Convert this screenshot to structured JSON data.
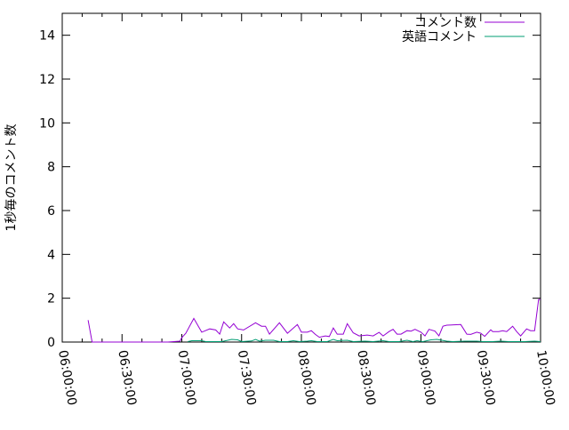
{
  "chart_data": {
    "type": "line",
    "title": "",
    "xlabel": "",
    "ylabel": "1秒毎のコメント数",
    "xlim": [
      "06:00:00",
      "10:00:00"
    ],
    "ylim": [
      0,
      15
    ],
    "xticks": [
      "06:00:00",
      "06:30:00",
      "07:00:00",
      "07:30:00",
      "08:00:00",
      "08:30:00",
      "09:00:00",
      "09:30:00",
      "10:00:00"
    ],
    "yticks": [
      "0",
      "2",
      "4",
      "6",
      "8",
      "10",
      "12",
      "14"
    ],
    "grid": false,
    "legend": "top-right",
    "series": [
      {
        "name": "コメント数",
        "color": "#9400d3",
        "points": [
          [
            "06:13",
            1.0
          ],
          [
            "06:15",
            0
          ],
          [
            "06:53",
            0
          ],
          [
            "06:59",
            0.04
          ],
          [
            "07:00",
            0.2
          ],
          [
            "07:02",
            0.4
          ],
          [
            "07:06",
            1.08
          ],
          [
            "07:10",
            0.45
          ],
          [
            "07:14",
            0.6
          ],
          [
            "07:17",
            0.55
          ],
          [
            "07:19",
            0.36
          ],
          [
            "07:21",
            0.92
          ],
          [
            "07:24",
            0.64
          ],
          [
            "07:26",
            0.84
          ],
          [
            "07:28",
            0.6
          ],
          [
            "07:31",
            0.55
          ],
          [
            "07:37",
            0.88
          ],
          [
            "07:40",
            0.72
          ],
          [
            "07:42",
            0.72
          ],
          [
            "07:44",
            0.36
          ],
          [
            "07:49",
            0.88
          ],
          [
            "07:53",
            0.4
          ],
          [
            "07:58",
            0.8
          ],
          [
            "08:00",
            0.45
          ],
          [
            "08:03",
            0.45
          ],
          [
            "08:05",
            0.52
          ],
          [
            "08:07",
            0.35
          ],
          [
            "08:09",
            0.22
          ],
          [
            "08:12",
            0.28
          ],
          [
            "08:14",
            0.25
          ],
          [
            "08:16",
            0.64
          ],
          [
            "08:18",
            0.36
          ],
          [
            "08:21",
            0.36
          ],
          [
            "08:23",
            0.84
          ],
          [
            "08:26",
            0.42
          ],
          [
            "08:29",
            0.28
          ],
          [
            "08:33",
            0.32
          ],
          [
            "08:36",
            0.28
          ],
          [
            "08:39",
            0.44
          ],
          [
            "08:41",
            0.28
          ],
          [
            "08:44",
            0.48
          ],
          [
            "08:46",
            0.58
          ],
          [
            "08:48",
            0.36
          ],
          [
            "08:50",
            0.36
          ],
          [
            "08:53",
            0.52
          ],
          [
            "08:55",
            0.5
          ],
          [
            "08:57",
            0.58
          ],
          [
            "09:00",
            0.45
          ],
          [
            "09:02",
            0.28
          ],
          [
            "09:04",
            0.58
          ],
          [
            "09:07",
            0.5
          ],
          [
            "09:09",
            0.28
          ],
          [
            "09:11",
            0.72
          ],
          [
            "09:13",
            0.77
          ],
          [
            "09:20",
            0.8
          ],
          [
            "09:23",
            0.36
          ],
          [
            "09:25",
            0.35
          ],
          [
            "09:28",
            0.45
          ],
          [
            "09:30",
            0.4
          ],
          [
            "09:32",
            0.26
          ],
          [
            "09:35",
            0.56
          ],
          [
            "09:36",
            0.48
          ],
          [
            "09:39",
            0.48
          ],
          [
            "09:41",
            0.52
          ],
          [
            "09:43",
            0.48
          ],
          [
            "09:46",
            0.72
          ],
          [
            "09:48",
            0.48
          ],
          [
            "09:50",
            0.28
          ],
          [
            "09:53",
            0.6
          ],
          [
            "09:55",
            0.52
          ],
          [
            "09:57",
            0.52
          ],
          [
            "09:59",
            1.94
          ],
          [
            "10:00",
            1.94
          ]
        ]
      },
      {
        "name": "英語コメント",
        "color": "#009e73",
        "points": [
          [
            "07:03",
            0.02
          ],
          [
            "07:05",
            0.06
          ],
          [
            "07:10",
            0.06
          ],
          [
            "07:12",
            0.02
          ],
          [
            "07:20",
            0.02
          ],
          [
            "07:22",
            0.06
          ],
          [
            "07:25",
            0.12
          ],
          [
            "07:28",
            0.1
          ],
          [
            "07:30",
            0.02
          ],
          [
            "07:35",
            0.05
          ],
          [
            "07:37",
            0.12
          ],
          [
            "07:39",
            0.04
          ],
          [
            "07:42",
            0.08
          ],
          [
            "07:46",
            0.08
          ],
          [
            "07:49",
            0.02
          ],
          [
            "07:53",
            0.02
          ],
          [
            "07:56",
            0.06
          ],
          [
            "07:59",
            0.02
          ],
          [
            "08:03",
            0.04
          ],
          [
            "08:05",
            0.06
          ],
          [
            "08:08",
            0.02
          ],
          [
            "08:13",
            0.02
          ],
          [
            "08:16",
            0.12
          ],
          [
            "08:18",
            0.06
          ],
          [
            "08:23",
            0.08
          ],
          [
            "08:26",
            0.02
          ],
          [
            "08:32",
            0.04
          ],
          [
            "08:36",
            0.02
          ],
          [
            "08:41",
            0.06
          ],
          [
            "08:44",
            0.02
          ],
          [
            "08:49",
            0.02
          ],
          [
            "08:53",
            0.08
          ],
          [
            "08:56",
            0.02
          ],
          [
            "08:58",
            0.06
          ],
          [
            "09:01",
            0.02
          ],
          [
            "09:05",
            0.1
          ],
          [
            "09:08",
            0.12
          ],
          [
            "09:13",
            0.04
          ],
          [
            "09:16",
            0.02
          ],
          [
            "09:22",
            0.04
          ],
          [
            "09:28",
            0.04
          ],
          [
            "09:31",
            0.02
          ],
          [
            "09:36",
            0.02
          ],
          [
            "09:40",
            0.04
          ],
          [
            "09:44",
            0.02
          ],
          [
            "09:52",
            0.02
          ],
          [
            "09:57",
            0.04
          ],
          [
            "10:00",
            0.02
          ]
        ]
      }
    ]
  }
}
